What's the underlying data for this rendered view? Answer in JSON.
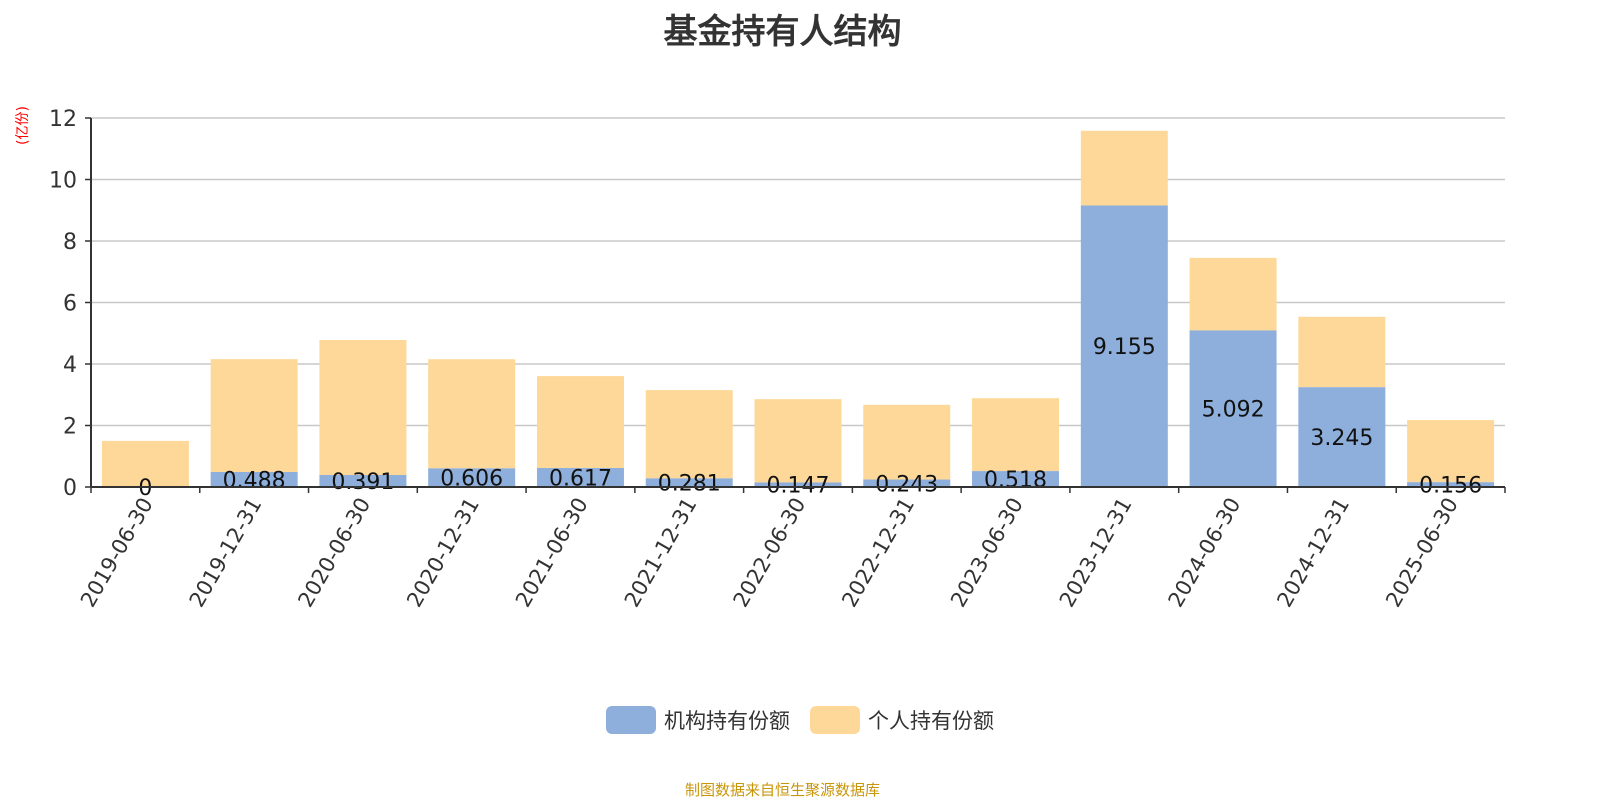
{
  "chart_data": {
    "type": "bar",
    "stacked": true,
    "title": "基金持有人结构",
    "ylabel": "(亿份)",
    "ylim": [
      0,
      12
    ],
    "yticks": [
      0,
      2,
      4,
      6,
      8,
      10,
      12
    ],
    "grid": true,
    "legend_position": "bottom",
    "categories": [
      "2019-06-30",
      "2019-12-31",
      "2020-06-30",
      "2020-12-31",
      "2021-06-30",
      "2021-12-31",
      "2022-06-30",
      "2022-12-31",
      "2023-06-30",
      "2023-12-31",
      "2024-06-30",
      "2024-12-31",
      "2025-06-30"
    ],
    "series": [
      {
        "name": "机构持有份额",
        "color": "#8eaedb",
        "values": [
          0,
          0.488,
          0.391,
          0.606,
          0.617,
          0.281,
          0.147,
          0.243,
          0.518,
          9.155,
          5.092,
          3.245,
          0.156
        ],
        "labels": [
          "0",
          "0.488",
          "0.391",
          "0.606",
          "0.617",
          "0.281",
          "0.147",
          "0.243",
          "0.518",
          "9.155",
          "5.092",
          "3.245",
          "0.156"
        ]
      },
      {
        "name": "个人持有份额",
        "color": "#fed898",
        "values": [
          1.5,
          3.67,
          4.39,
          3.55,
          2.99,
          2.87,
          2.71,
          2.43,
          2.37,
          2.43,
          2.36,
          2.29,
          2.02
        ]
      }
    ]
  },
  "source": "制图数据来自恒生聚源数据库"
}
